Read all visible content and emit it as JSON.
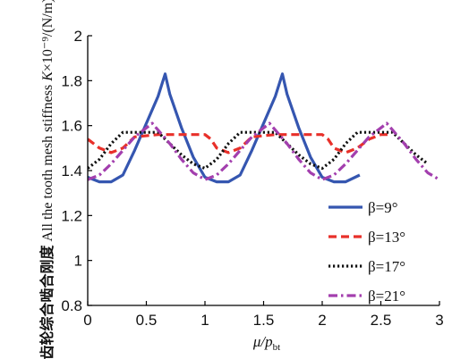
{
  "chart_data": {
    "type": "line",
    "title": "",
    "xlabel": "μ/p",
    "xlabel_sub": "bt",
    "ylabel_zh": "齿轮综合啮合刚度",
    "ylabel_en_prefix": "All the tooth mesh stiffness ",
    "ylabel_symbol": "K",
    "ylabel_en_suffix": "×10⁻⁹/(N/m)",
    "xlim": [
      0,
      3
    ],
    "ylim": [
      0.8,
      2
    ],
    "x_ticks": [
      0,
      0.5,
      1,
      1.5,
      2,
      2.5,
      3
    ],
    "x_tick_labels": [
      "0",
      "0.5",
      "1",
      "1.5",
      "2",
      "2.5",
      "3"
    ],
    "y_ticks": [
      0.8,
      1,
      1.2,
      1.4,
      1.6,
      1.8,
      2
    ],
    "y_tick_labels": [
      "0.8",
      "1",
      "1.2",
      "1.4",
      "1.6",
      "1.8",
      "2"
    ],
    "legend_position": "bottom-right",
    "series": [
      {
        "name": "β=9°",
        "color": "#3556b0",
        "dash": "solid",
        "x": [
          0,
          0.1,
          0.2,
          0.3,
          0.4,
          0.5,
          0.6,
          0.66,
          0.7,
          0.8,
          0.9,
          1.0,
          1.1,
          1.2,
          1.3,
          1.4,
          1.5,
          1.6,
          1.66,
          1.7,
          1.8,
          1.9,
          2.0,
          2.1,
          2.2,
          2.32
        ],
        "values": [
          1.37,
          1.35,
          1.35,
          1.38,
          1.49,
          1.61,
          1.73,
          1.83,
          1.74,
          1.59,
          1.46,
          1.37,
          1.35,
          1.35,
          1.38,
          1.49,
          1.61,
          1.73,
          1.83,
          1.74,
          1.59,
          1.46,
          1.37,
          1.35,
          1.35,
          1.38
        ]
      },
      {
        "name": "β=13°",
        "color": "#e8302a",
        "dash": "dashed",
        "x": [
          0,
          0.1,
          0.2,
          0.3,
          0.4,
          0.6,
          0.8,
          1.0,
          1.05,
          1.1,
          1.2,
          1.3,
          1.4,
          1.6,
          1.8,
          2.0,
          2.05,
          2.1,
          2.2,
          2.3,
          2.4,
          2.5,
          2.58
        ],
        "values": [
          1.54,
          1.5,
          1.48,
          1.5,
          1.55,
          1.56,
          1.56,
          1.56,
          1.54,
          1.5,
          1.48,
          1.5,
          1.55,
          1.56,
          1.56,
          1.56,
          1.54,
          1.5,
          1.48,
          1.5,
          1.54,
          1.56,
          1.56
        ]
      },
      {
        "name": "β=17°",
        "color": "#111111",
        "dash": "dotted",
        "x": [
          0,
          0.1,
          0.2,
          0.3,
          0.5,
          0.6,
          0.7,
          0.8,
          0.9,
          1.0,
          1.1,
          1.2,
          1.3,
          1.5,
          1.6,
          1.7,
          1.8,
          1.9,
          2.0,
          2.1,
          2.2,
          2.3,
          2.5,
          2.6,
          2.7,
          2.8,
          2.9
        ],
        "values": [
          1.41,
          1.45,
          1.52,
          1.57,
          1.57,
          1.57,
          1.52,
          1.47,
          1.43,
          1.41,
          1.45,
          1.52,
          1.57,
          1.57,
          1.57,
          1.52,
          1.47,
          1.43,
          1.41,
          1.45,
          1.52,
          1.57,
          1.57,
          1.57,
          1.52,
          1.47,
          1.43
        ]
      },
      {
        "name": "β=21°",
        "color": "#a33fae",
        "dash": "dashdot",
        "x": [
          0,
          0.1,
          0.2,
          0.3,
          0.4,
          0.55,
          0.7,
          0.8,
          0.9,
          1.0,
          1.1,
          1.2,
          1.3,
          1.4,
          1.55,
          1.7,
          1.8,
          1.9,
          2.0,
          2.1,
          2.2,
          2.3,
          2.4,
          2.55,
          2.7,
          2.8,
          2.9,
          3.0
        ],
        "values": [
          1.36,
          1.38,
          1.43,
          1.49,
          1.55,
          1.61,
          1.52,
          1.45,
          1.39,
          1.36,
          1.38,
          1.43,
          1.49,
          1.55,
          1.61,
          1.52,
          1.45,
          1.39,
          1.36,
          1.38,
          1.43,
          1.49,
          1.55,
          1.61,
          1.52,
          1.45,
          1.39,
          1.36
        ]
      }
    ]
  }
}
